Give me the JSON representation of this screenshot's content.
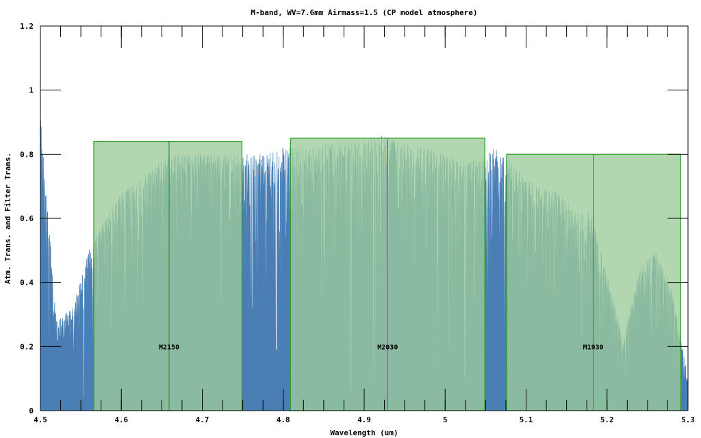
{
  "chart_data": {
    "type": "area",
    "title": "M-band, WV=7.6mm  Airmass=1.5 (CP model atmosphere)",
    "xlabel": "Wavelength (um)",
    "ylabel": "Atm. Trans. and Filter Trans.",
    "xlim": [
      4.5,
      5.3
    ],
    "ylim": [
      0,
      1.2
    ],
    "x_ticks": [
      "4.5",
      "4.6",
      "4.7",
      "4.8",
      "4.9",
      "5",
      "5.1",
      "5.2",
      "5.3"
    ],
    "y_ticks": [
      "0",
      "0.2",
      "0.4",
      "0.6",
      "0.8",
      "1",
      "1.2"
    ],
    "grid": false,
    "colors": {
      "atmosphere": "#4a7fb5",
      "filter_fill": "#9ccc9a",
      "filter_edge": "#2fa02f",
      "overlap": "#3a8878",
      "axis": "#000000"
    },
    "filters": [
      {
        "name": "M2150",
        "label_y": 0.2,
        "x_start": 4.566,
        "x_mid": 4.659,
        "x_end": 4.749,
        "transmission": 0.84
      },
      {
        "name": "M2030",
        "label_y": 0.2,
        "x_start": 4.809,
        "x_mid": 4.929,
        "x_end": 5.049,
        "transmission": 0.85
      },
      {
        "name": "M1930",
        "label_y": 0.2,
        "x_start": 5.076,
        "x_mid": 5.183,
        "x_end": 5.291,
        "transmission": 0.8
      }
    ],
    "atmosphere_envelope": {
      "description_points_x": [
        4.5,
        4.52,
        4.54,
        4.56,
        4.58,
        4.6,
        4.62,
        4.64,
        4.66,
        4.68,
        4.7,
        4.72,
        4.74,
        4.76,
        4.78,
        4.8,
        4.82,
        4.84,
        4.86,
        4.88,
        4.9,
        4.92,
        4.94,
        4.96,
        4.98,
        5.0,
        5.02,
        5.04,
        5.06,
        5.08,
        5.1,
        5.12,
        5.14,
        5.16,
        5.18,
        5.2,
        5.22,
        5.24,
        5.26,
        5.28,
        5.3
      ],
      "max": [
        0.92,
        0.28,
        0.32,
        0.5,
        0.6,
        0.68,
        0.72,
        0.76,
        0.8,
        0.8,
        0.8,
        0.8,
        0.8,
        0.8,
        0.8,
        0.82,
        0.82,
        0.82,
        0.84,
        0.84,
        0.84,
        0.86,
        0.84,
        0.82,
        0.82,
        0.8,
        0.78,
        0.78,
        0.82,
        0.78,
        0.72,
        0.7,
        0.68,
        0.62,
        0.62,
        0.42,
        0.22,
        0.44,
        0.5,
        0.38,
        0.1
      ],
      "min": [
        0,
        0,
        0,
        0,
        0,
        0.05,
        0.1,
        0.15,
        0.2,
        0.3,
        0.35,
        0.25,
        0.2,
        0.3,
        0.2,
        0,
        0,
        0,
        0,
        0,
        0,
        0,
        0,
        0,
        0,
        0,
        0,
        0,
        0,
        0,
        0,
        0,
        0,
        0,
        0,
        0,
        0,
        0,
        0,
        0,
        0
      ]
    }
  }
}
